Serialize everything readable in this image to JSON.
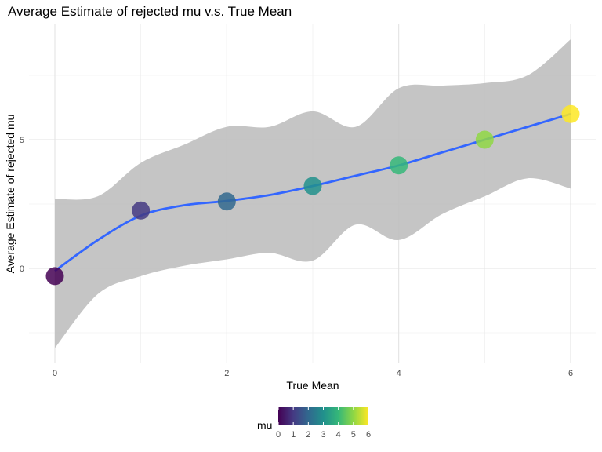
{
  "chart_data": {
    "type": "scatter",
    "title": "Average Estimate of rejected mu v.s. True Mean",
    "xlabel": "True Mean",
    "ylabel": "Average Estimate of rejected mu",
    "xlim": [
      -0.3,
      6.3
    ],
    "ylim": [
      -3.5,
      8.0
    ],
    "x_ticks": [
      0,
      2,
      4,
      6
    ],
    "y_ticks": [
      0,
      5
    ],
    "grid": true,
    "points": [
      {
        "x": 0,
        "y": -0.3,
        "mu": 0
      },
      {
        "x": 1,
        "y": 2.25,
        "mu": 1
      },
      {
        "x": 2,
        "y": 2.6,
        "mu": 2
      },
      {
        "x": 3,
        "y": 3.2,
        "mu": 3
      },
      {
        "x": 4,
        "y": 4.0,
        "mu": 4
      },
      {
        "x": 5,
        "y": 5.0,
        "mu": 5
      },
      {
        "x": 6,
        "y": 6.0,
        "mu": 6
      }
    ],
    "smooth": {
      "method": "loess",
      "color": "#3366FF",
      "band_color": "#bfbfbf",
      "x": [
        0,
        0.5,
        1,
        1.5,
        2,
        2.5,
        3,
        3.5,
        4,
        4.5,
        5,
        5.5,
        6
      ],
      "fit": [
        -0.1,
        1.1,
        2.05,
        2.45,
        2.62,
        2.85,
        3.2,
        3.6,
        4.0,
        4.5,
        5.0,
        5.5,
        6.0
      ],
      "lower": [
        -3.1,
        -1.0,
        -0.3,
        0.1,
        0.35,
        0.6,
        0.3,
        1.7,
        1.1,
        2.1,
        2.8,
        3.5,
        3.1
      ],
      "upper": [
        2.7,
        2.8,
        4.1,
        4.8,
        5.5,
        5.5,
        6.1,
        5.5,
        7.0,
        7.1,
        7.2,
        7.5,
        8.9
      ]
    },
    "legend": {
      "title": "mu",
      "type": "colorbar",
      "position": "bottom",
      "min": 0,
      "max": 6,
      "tick_labels": [
        "0",
        "1",
        "2",
        "3",
        "4",
        "5",
        "6"
      ],
      "colors": [
        "#440154",
        "#443A83",
        "#31688E",
        "#21908C",
        "#35B779",
        "#8FD744",
        "#FDE725"
      ]
    }
  }
}
